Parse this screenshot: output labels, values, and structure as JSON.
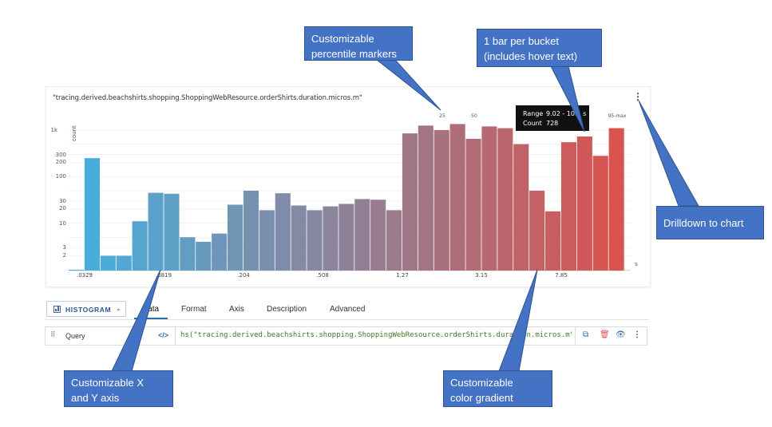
{
  "chart": {
    "title": "\"tracing.derived.beachshirts.shopping.ShoppingWebResource.orderShirts.duration.micros.m\"",
    "menu_icon": "⋮",
    "ylabel": "count",
    "yticks": [
      "1k",
      "300",
      "200",
      "100",
      "30",
      "20",
      "10",
      "3",
      "2"
    ],
    "xticks": [
      ".0329",
      ".0819",
      ".204",
      ".508",
      "1.27",
      "3.15",
      "7.85"
    ],
    "xunit": "s",
    "percentile_markers": [
      "25",
      "50",
      "95-max"
    ]
  },
  "chart_data": {
    "type": "bar",
    "scale": "log",
    "ylabel": "count",
    "xunit": "s",
    "values": [
      1,
      250,
      2,
      2,
      11,
      45,
      43,
      5,
      4,
      6,
      25,
      50,
      19,
      44,
      24,
      19,
      23,
      26,
      33,
      32,
      19,
      850,
      1250,
      1000,
      1350,
      650,
      1200,
      1100,
      500,
      50,
      18,
      550,
      728,
      280,
      1100
    ],
    "color_start": "#45b0e0",
    "color_end": "#d9534f"
  },
  "tooltip": {
    "range_key": "Range",
    "range_value": "9.02 - 10.5 s",
    "count_key": "Count",
    "count_value": "728"
  },
  "toolbar": {
    "chart_type_label": "HISTOGRAM",
    "tabs": [
      "Data",
      "Format",
      "Axis",
      "Description",
      "Advanced"
    ]
  },
  "query": {
    "label": "Query",
    "code_icon": "</>",
    "value": "hs(\"tracing.derived.beachshirts.shopping.ShoppingWebResource.orderShirts.duration.micros.m\")"
  },
  "callouts": {
    "percentile": "Customizable percentile markers",
    "bucket_line1": "1 bar per bucket",
    "bucket_line2": "(includes hover text)",
    "drilldown": "Drilldown to chart",
    "axis_line1": "Customizable X",
    "axis_line2": "and Y axis",
    "gradient_line1": "Customizable",
    "gradient_line2": "color gradient"
  }
}
